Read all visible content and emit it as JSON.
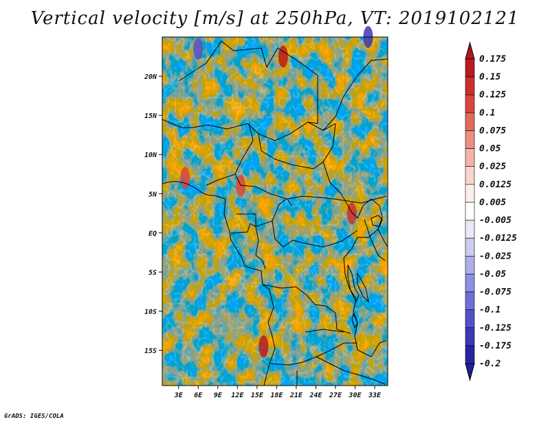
{
  "chart_data": {
    "type": "heatmap",
    "title": "Vertical velocity [m/s] at 250hPa, VT: 2019102121",
    "variable": "Vertical velocity",
    "units": "m/s",
    "level": "250hPa",
    "valid_time": "2019102121",
    "x_ticks": [
      "3E",
      "6E",
      "9E",
      "12E",
      "15E",
      "18E",
      "21E",
      "24E",
      "27E",
      "30E",
      "33E"
    ],
    "x_tick_values": [
      3,
      6,
      9,
      12,
      15,
      18,
      21,
      24,
      27,
      30,
      33
    ],
    "y_ticks": [
      "20N",
      "15N",
      "10N",
      "5N",
      "EQ",
      "5S",
      "10S",
      "15S"
    ],
    "y_tick_values": [
      20,
      15,
      10,
      5,
      0,
      -5,
      -10,
      -15
    ],
    "xlim": [
      0.5,
      35
    ],
    "ylim": [
      -19.5,
      25
    ],
    "colorbar": {
      "labels": [
        "0.175",
        "0.15",
        "0.125",
        "0.1",
        "0.075",
        "0.05",
        "0.025",
        "0.0125",
        "0.005",
        "-0.005",
        "-0.0125",
        "-0.025",
        "-0.05",
        "-0.075",
        "-0.1",
        "-0.125",
        "-0.175",
        "-0.2"
      ],
      "colors": [
        "#a50f15",
        "#b81b20",
        "#cb2f2c",
        "#d9463e",
        "#e36a5c",
        "#ec8f82",
        "#f3b3a9",
        "#f9d3cd",
        "#fdeeec",
        "#ffffff",
        "#e9e9f8",
        "#cdcdf1",
        "#aeaeea",
        "#8f8fe1",
        "#6f6fd7",
        "#5252c8",
        "#3a3ab6",
        "#2525a0",
        "#15158a"
      ]
    },
    "features": [
      {
        "name": "strong-ascent",
        "lon": 16,
        "lat": -14.5,
        "value": 0.15
      },
      {
        "name": "strong-ascent",
        "lon": 19,
        "lat": 22.5,
        "value": 0.15
      },
      {
        "name": "strong-ascent",
        "lon": 29.5,
        "lat": 2.5,
        "value": 0.125
      },
      {
        "name": "strong-ascent",
        "lon": 4,
        "lat": 7,
        "value": 0.1
      },
      {
        "name": "strong-ascent",
        "lon": 12.5,
        "lat": 6,
        "value": 0.1
      },
      {
        "name": "strong-descent",
        "lon": 6,
        "lat": 23.5,
        "value": -0.125
      },
      {
        "name": "strong-descent",
        "lon": 32,
        "lat": 25,
        "value": -0.175
      }
    ]
  },
  "footer": {
    "credit": "GrADS: IGES/COLA"
  }
}
